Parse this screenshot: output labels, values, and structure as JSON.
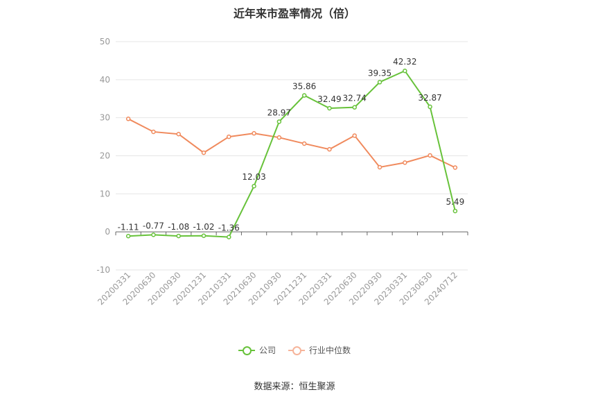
{
  "title": "近年来市盈率情况（倍）",
  "source": "数据来源：恒生聚源",
  "colors": {
    "company": "#67c23a",
    "industry": "#f08a5d"
  },
  "chart_data": {
    "type": "line",
    "title": "近年来市盈率情况（倍）",
    "categories": [
      "20200331",
      "20200630",
      "20200930",
      "20201231",
      "20210331",
      "20210630",
      "20210930",
      "20211231",
      "20220331",
      "20220630",
      "20220930",
      "20230331",
      "20230630",
      "20240712"
    ],
    "ylim": [
      -10,
      50
    ],
    "yticks": [
      -10,
      0,
      10,
      20,
      30,
      40,
      50
    ],
    "grid": true,
    "legend_position": "bottom",
    "series": [
      {
        "name": "公司",
        "values": [
          -1.11,
          -0.77,
          -1.08,
          -1.02,
          -1.36,
          12.03,
          28.97,
          35.86,
          32.49,
          32.74,
          39.35,
          42.32,
          32.87,
          5.49
        ],
        "labels": [
          "-1.11",
          "-0.77",
          "-1.08",
          "-1.02",
          "-1.36",
          "12.03",
          "28.97",
          "35.86",
          "32.49",
          "32.74",
          "39.35",
          "42.32",
          "32.87",
          "5.49"
        ]
      },
      {
        "name": "行业中位数",
        "values": [
          29.7,
          26.3,
          25.7,
          20.8,
          25.0,
          25.9,
          24.8,
          23.2,
          21.7,
          25.3,
          17.0,
          18.2,
          20.1,
          16.9
        ]
      }
    ]
  }
}
